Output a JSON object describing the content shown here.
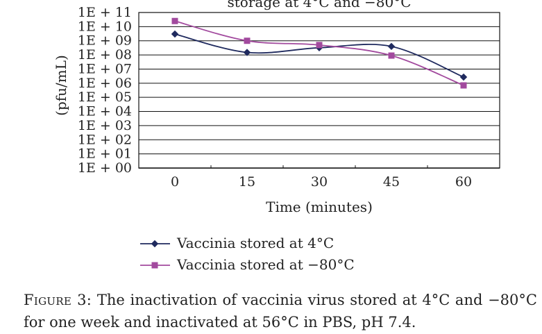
{
  "chart_data": {
    "type": "line",
    "title": "storage at 4°C and −80°C",
    "xlabel": "Time (minutes)",
    "ylabel": "(pfu/mL)",
    "categories": [
      "0",
      "15",
      "30",
      "45",
      "60"
    ],
    "y_scale": "log",
    "y_tick_labels": [
      "1E + 00",
      "1E + 01",
      "1E + 02",
      "1E + 03",
      "1E + 04",
      "1E + 05",
      "1E + 06",
      "1E + 07",
      "1E + 08",
      "1E + 09",
      "1E + 10",
      "1E + 11"
    ],
    "ylim": [
      1,
      100000000000
    ],
    "grid": true,
    "legend_position": "bottom-left",
    "series": [
      {
        "name": "Vaccinia stored at 4°C",
        "values": [
          3000000000,
          150000000,
          320000000,
          400000000,
          2700000
        ],
        "color": "#1f2a5e",
        "marker": "diamond"
      },
      {
        "name": "Vaccinia stored at −80°C",
        "values": [
          25000000000,
          1000000000,
          500000000,
          90000000,
          700000
        ],
        "color": "#a24a9e",
        "marker": "square"
      }
    ]
  },
  "caption": {
    "label": "Figure 3:",
    "text": "The inactivation of vaccinia virus stored at 4°C and −80°C for one week and inactivated at 56°C in PBS, pH 7.4."
  }
}
